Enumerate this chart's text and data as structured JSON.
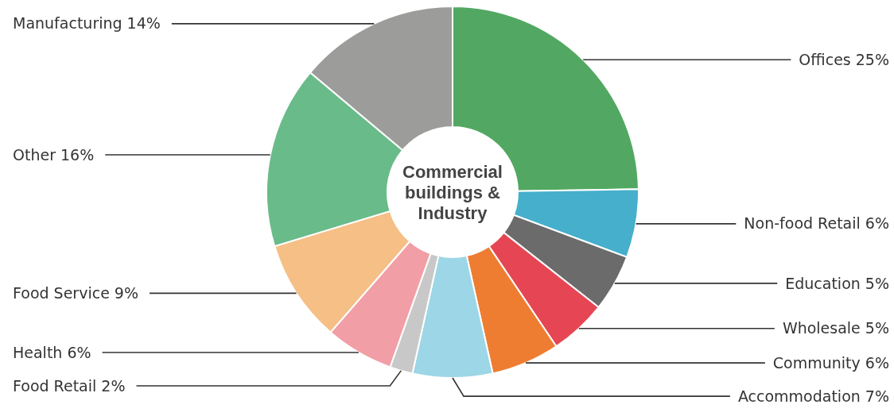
{
  "chart_data": {
    "type": "donut",
    "categories": [
      "Offices",
      "Non-food Retail",
      "Education",
      "Wholesale",
      "Community",
      "Accommodation",
      "Food Retail",
      "Health",
      "Food Service",
      "Other",
      "Manufacturing"
    ],
    "values": [
      25,
      6,
      5,
      5,
      6,
      7,
      2,
      6,
      9,
      16,
      14
    ],
    "value_labels": [
      "25%",
      "6%",
      "5%",
      "5%",
      "6%",
      "7%",
      "2%",
      "6%",
      "9%",
      "16%",
      "14%"
    ],
    "colors": [
      "#52a862",
      "#45afcc",
      "#6b6b6b",
      "#e64654",
      "#ee7d32",
      "#9dd6e6",
      "#c8c8c8",
      "#f29ea6",
      "#f5bf86",
      "#6abb8a",
      "#9c9c9a"
    ],
    "annotations": [
      "Commercial buildings & Industry"
    ]
  }
}
